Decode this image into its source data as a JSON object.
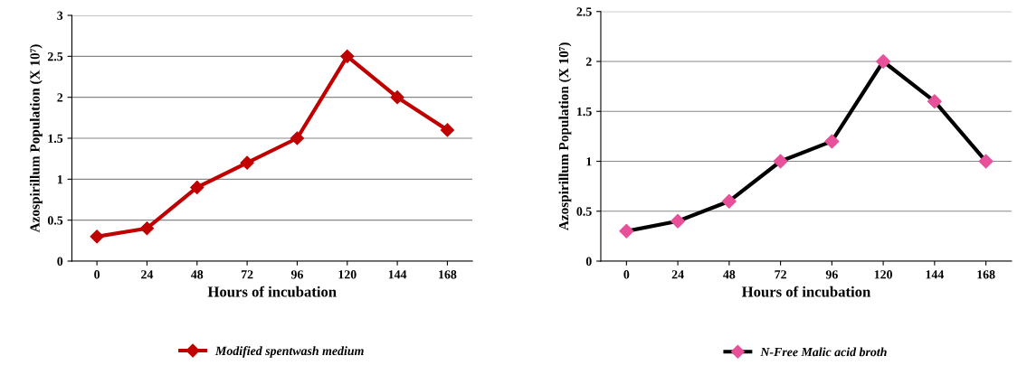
{
  "chart_data": [
    {
      "type": "line",
      "xlabel": "Hours of incubation",
      "ylabel": "Azospirillum Population (X 10⁷)",
      "categories": [
        "0",
        "24",
        "48",
        "72",
        "96",
        "120",
        "144",
        "168"
      ],
      "series": [
        {
          "name": "Modified spentwash medium",
          "color": "#c00000",
          "values": [
            0.3,
            0.4,
            0.9,
            1.2,
            1.5,
            2.5,
            2.0,
            1.6
          ]
        }
      ],
      "ylim": [
        0,
        3
      ],
      "yticks": [
        0,
        0.5,
        1,
        1.5,
        2,
        2.5,
        3
      ],
      "grid": "y",
      "legend": "bottom",
      "marker": "diamond",
      "line_style": "solid"
    },
    {
      "type": "line",
      "xlabel": "Hours of incubation",
      "ylabel": "Azospirillum Population (X 10⁷)",
      "categories": [
        "0",
        "24",
        "48",
        "72",
        "96",
        "120",
        "144",
        "168"
      ],
      "series": [
        {
          "name": "N-Free Malic acid broth",
          "color": "#000000",
          "colors": [
            "#e8509a",
            "#e8509a",
            "#e8509a",
            "#e8509a",
            "#e8509a",
            "#e8509a",
            "#e8509a",
            "#e8509a"
          ],
          "values": [
            0.3,
            0.4,
            0.6,
            1.0,
            1.2,
            2.0,
            1.6,
            1.0
          ]
        }
      ],
      "ylim": [
        0,
        2.5
      ],
      "yticks": [
        0,
        0.5,
        1,
        1.5,
        2,
        2.5
      ],
      "grid": "y",
      "legend": "bottom",
      "marker": "diamond",
      "line_style": "solid"
    }
  ]
}
